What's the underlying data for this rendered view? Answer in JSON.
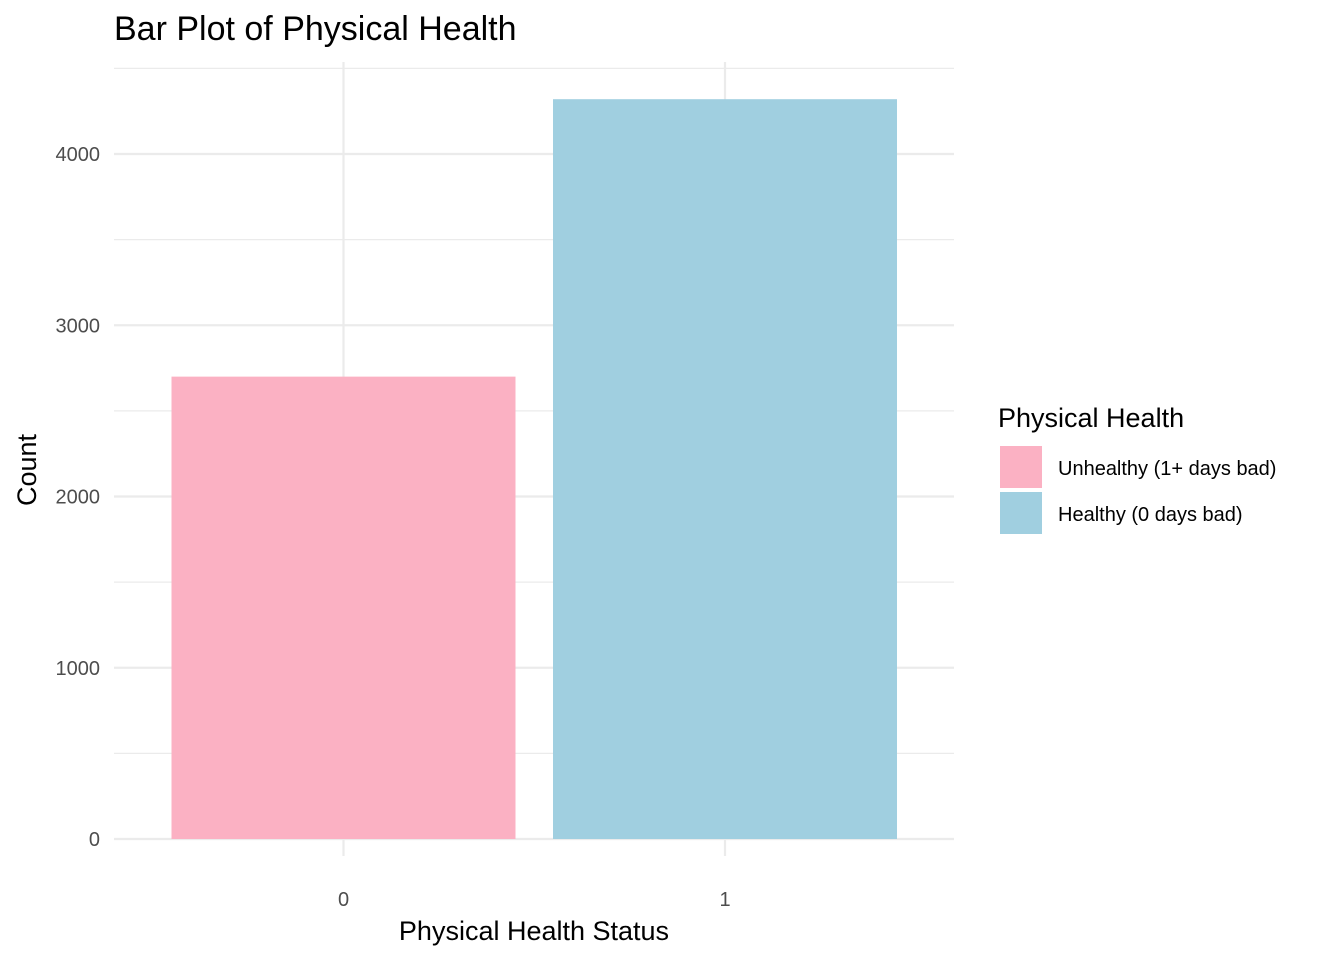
{
  "chart_data": {
    "type": "bar",
    "title": "Bar Plot of Physical Health",
    "xlabel": "Physical Health Status",
    "ylabel": "Count",
    "categories": [
      "0",
      "1"
    ],
    "values": [
      2700,
      4320
    ],
    "colors": [
      "#fbb1c3",
      "#a0cfe0"
    ],
    "ylim": [
      0,
      4550
    ],
    "yticks": [
      0,
      1000,
      2000,
      3000,
      4000
    ],
    "yticks_labels": [
      "0",
      "1000",
      "2000",
      "3000",
      "4000"
    ],
    "yticks_minor": [
      500,
      1500,
      2500,
      3500,
      4500
    ],
    "grid": true,
    "legend": {
      "title": "Physical Health",
      "position": "right",
      "entries": [
        {
          "label": "Unhealthy (1+ days bad)",
          "color": "#fbb1c3"
        },
        {
          "label": "Healthy (0 days bad)",
          "color": "#a0cfe0"
        }
      ]
    }
  }
}
